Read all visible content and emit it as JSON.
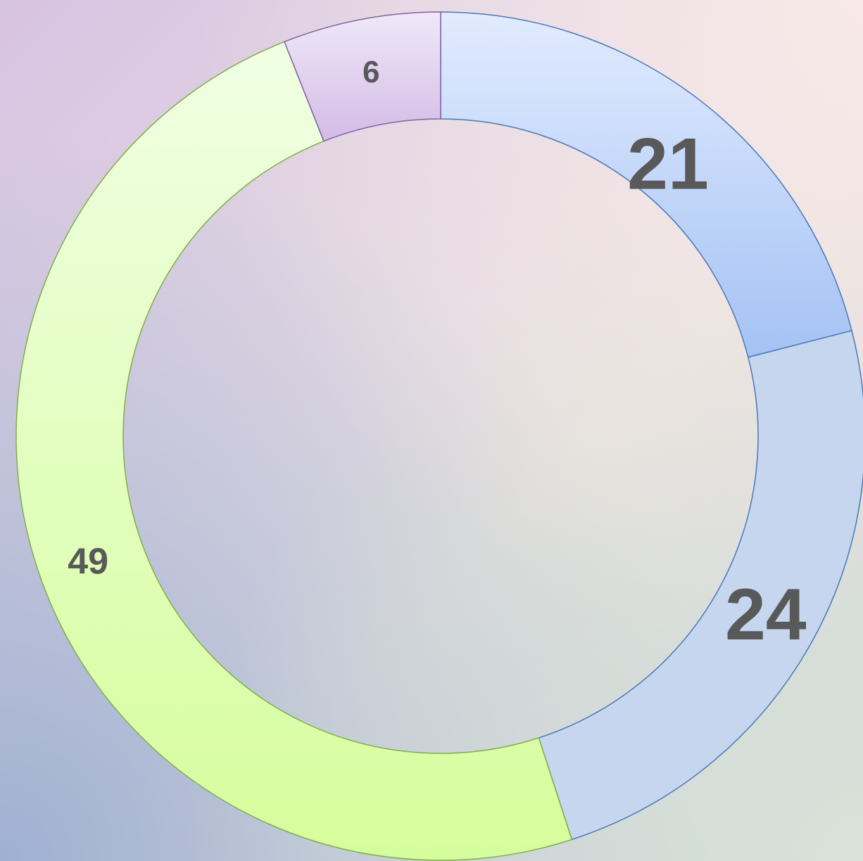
{
  "chart_data": {
    "type": "pie",
    "variant": "donut",
    "title": "",
    "start": "top",
    "direction": "clockwise",
    "legend": "none",
    "slices": [
      {
        "value": 21,
        "label": "21",
        "color_top": "#e2ebff",
        "color_bottom": "#a4c2f4",
        "stroke": "#4a78b8"
      },
      {
        "value": 24,
        "label": "24",
        "color_top": "#c6d6ef",
        "color_bottom": "#c6d6ef",
        "stroke": "#4a78b8"
      },
      {
        "value": 49,
        "label": "49",
        "color_top": "#f0ffe4",
        "color_bottom": "#d6fd9c",
        "stroke": "#7fae48"
      },
      {
        "value": 6,
        "label": "6",
        "color_top": "#f0e8f8",
        "color_bottom": "#d3bbe6",
        "stroke": "#7e62a3"
      }
    ]
  }
}
